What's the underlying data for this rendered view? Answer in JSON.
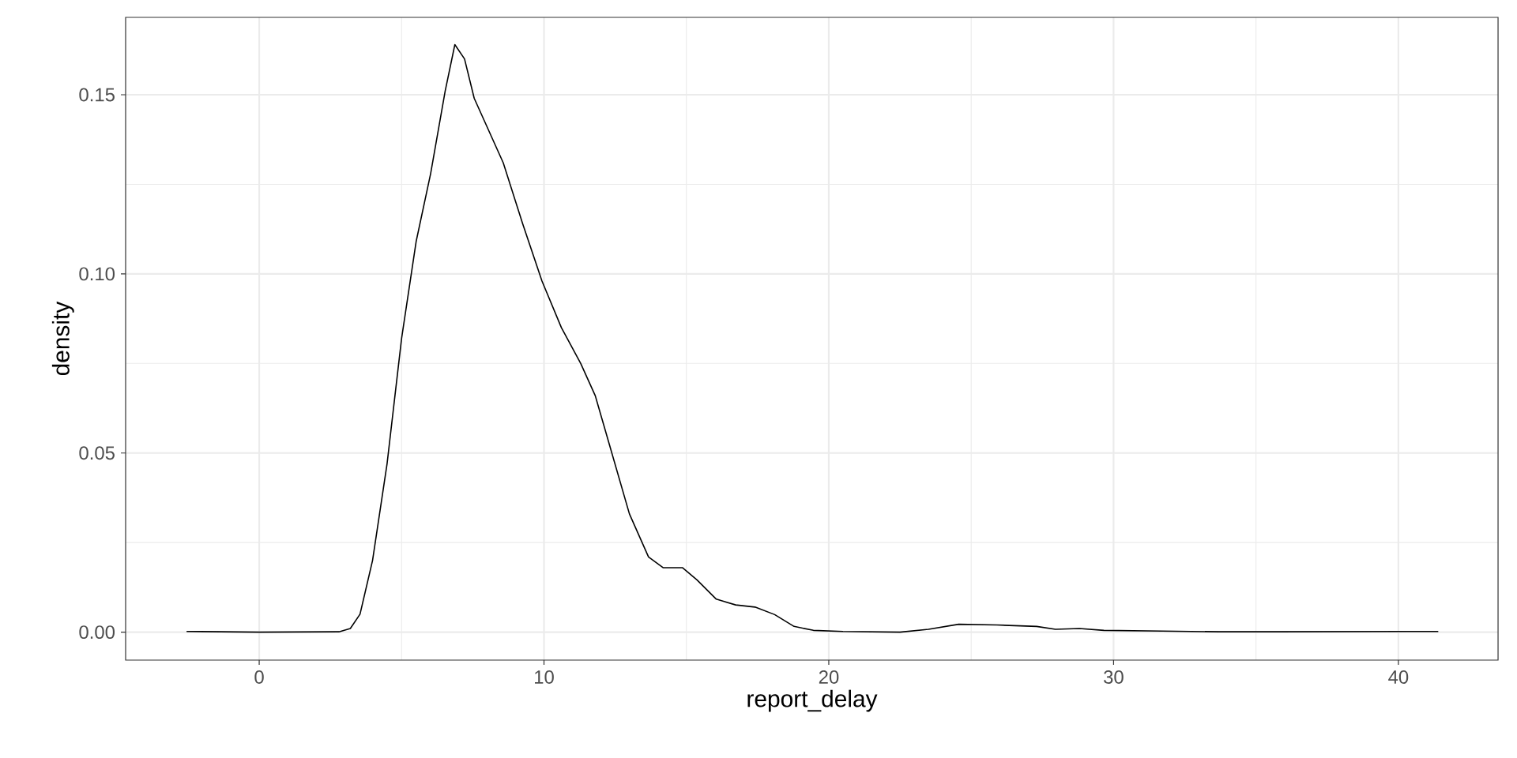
{
  "chart_data": {
    "type": "line",
    "xlabel": "report_delay",
    "ylabel": "density",
    "x": [
      -2.55,
      0,
      2.8,
      3.2,
      3.54,
      3.98,
      4.49,
      5.0,
      5.51,
      6.02,
      6.53,
      6.87,
      7.21,
      7.55,
      7.89,
      8.57,
      9.25,
      9.93,
      10.61,
      11.29,
      11.8,
      12.31,
      13.0,
      13.67,
      14.18,
      14.86,
      15.37,
      16.05,
      16.73,
      17.41,
      18.1,
      18.78,
      19.46,
      20.5,
      22.5,
      23.5,
      24.56,
      25.9,
      27.3,
      27.96,
      28.8,
      29.66,
      31.7,
      33.7,
      35.8,
      41.4
    ],
    "series": [
      {
        "color": "#000000",
        "values": [
          0.0002,
          0.0,
          0.0001,
          0.001,
          0.005,
          0.02,
          0.047,
          0.082,
          0.109,
          0.128,
          0.151,
          0.164,
          0.16,
          0.149,
          0.143,
          0.131,
          0.114,
          0.098,
          0.085,
          0.075,
          0.066,
          0.052,
          0.033,
          0.021,
          0.018,
          0.018,
          0.0146,
          0.0092,
          0.0076,
          0.007,
          0.0049,
          0.0016,
          0.0005,
          0.0002,
          0.0,
          0.0008,
          0.0022,
          0.002,
          0.0016,
          0.0008,
          0.001,
          0.0005,
          0.0003,
          0.0001,
          0.0001,
          0.0002
        ]
      }
    ],
    "xlim": [
      -4.69,
      43.5
    ],
    "ylim": [
      -0.0078,
      0.1716
    ],
    "xticks": [
      0,
      10,
      20,
      30,
      40
    ],
    "yticks": [
      {
        "value": 0,
        "label": "0.00"
      },
      {
        "value": 0.05,
        "label": "0.05"
      },
      {
        "value": 0.1,
        "label": "0.10"
      },
      {
        "value": 0.15,
        "label": "0.15"
      }
    ],
    "grid": true
  }
}
